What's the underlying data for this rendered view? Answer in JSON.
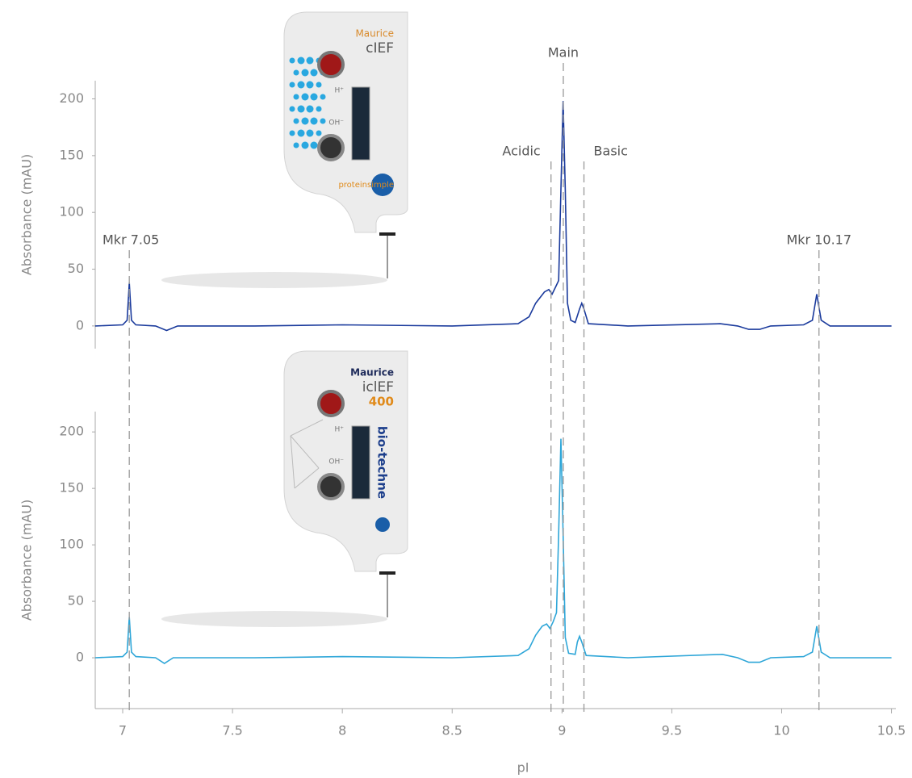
{
  "chart_data": {
    "type": "line",
    "xlabel": "pI",
    "xlim": [
      6.875,
      10.52
    ],
    "xticks": [
      7,
      7.5,
      8,
      8.5,
      9,
      9.5,
      10,
      10.5
    ],
    "annotations": [
      {
        "label": "Mkr 7.05",
        "x": 7.03
      },
      {
        "label": "Acidic",
        "x": 8.95
      },
      {
        "label": "Main",
        "x": 9.006
      },
      {
        "label": "Basic",
        "x": 9.1
      },
      {
        "label": "Mkr 10.17",
        "x": 10.17
      }
    ],
    "panels": [
      {
        "ylabel": "Absorbance (mAU)",
        "ylim": [
          -20,
          216
        ],
        "yticks": [
          0,
          50,
          100,
          150,
          200
        ],
        "color": "#1a3a9c",
        "x": [
          6.875,
          7.0,
          7.02,
          7.03,
          7.04,
          7.06,
          7.15,
          7.2,
          7.25,
          7.6,
          8.0,
          8.5,
          8.8,
          8.85,
          8.88,
          8.92,
          8.94,
          8.955,
          8.97,
          8.985,
          8.995,
          9.005,
          9.015,
          9.025,
          9.04,
          9.06,
          9.08,
          9.09,
          9.1,
          9.12,
          9.3,
          9.72,
          9.8,
          9.85,
          9.9,
          9.95,
          10.1,
          10.14,
          10.16,
          10.18,
          10.22,
          10.5
        ],
        "values": [
          0,
          1,
          5,
          38,
          5,
          1,
          0,
          -4,
          0,
          0,
          1,
          0,
          2,
          8,
          20,
          30,
          32,
          28,
          34,
          40,
          120,
          198,
          120,
          20,
          5,
          3,
          15,
          20,
          15,
          2,
          0,
          2,
          0,
          -3,
          -3,
          0,
          1,
          5,
          28,
          5,
          0,
          0
        ]
      },
      {
        "ylabel": "Absorbance (mAU)",
        "ylim": [
          -45,
          218
        ],
        "yticks": [
          0,
          50,
          100,
          150,
          200
        ],
        "color": "#2ea6d8",
        "x": [
          6.875,
          7.0,
          7.02,
          7.03,
          7.04,
          7.06,
          7.15,
          7.19,
          7.23,
          7.6,
          8.0,
          8.5,
          8.8,
          8.85,
          8.88,
          8.91,
          8.93,
          8.945,
          8.96,
          8.975,
          8.985,
          8.995,
          9.005,
          9.015,
          9.03,
          9.06,
          9.07,
          9.08,
          9.09,
          9.11,
          9.3,
          9.73,
          9.8,
          9.85,
          9.9,
          9.95,
          10.1,
          10.14,
          10.16,
          10.18,
          10.22,
          10.5
        ],
        "values": [
          0,
          1,
          5,
          36,
          5,
          1,
          0,
          -5,
          0,
          0,
          1,
          0,
          2,
          8,
          20,
          28,
          30,
          26,
          32,
          40,
          110,
          194,
          110,
          18,
          4,
          3,
          14,
          19,
          14,
          2,
          0,
          3,
          0,
          -4,
          -4,
          0,
          1,
          5,
          28,
          5,
          0,
          0
        ]
      }
    ]
  },
  "devices": [
    {
      "brand": "Maurice",
      "model": "cIEF",
      "ports": [
        "H⁺",
        "OH⁻"
      ],
      "maker": "proteinsimple"
    },
    {
      "brand": "Maurice",
      "model": "iclEF",
      "version": "400",
      "ports": [
        "H⁺",
        "OH⁻"
      ],
      "maker": "bio-techne"
    }
  ]
}
